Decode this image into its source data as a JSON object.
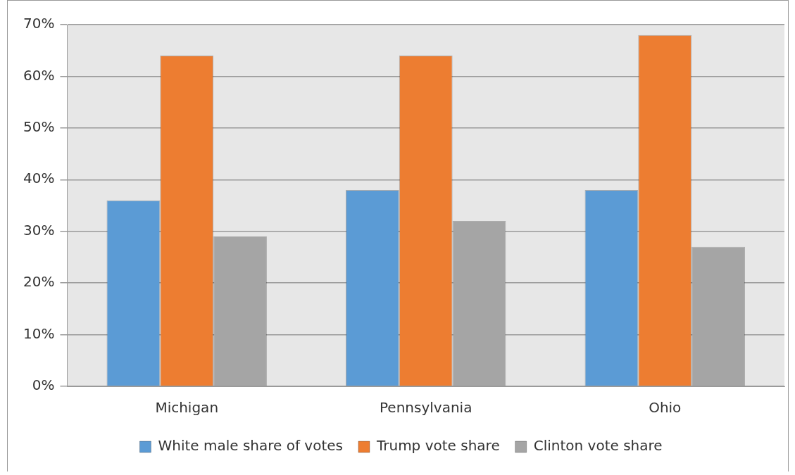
{
  "chart_data": {
    "type": "bar",
    "categories": [
      "Michigan",
      "Pennsylvania",
      "Ohio"
    ],
    "series": [
      {
        "name": "White male share of votes",
        "color": "#5b9bd5",
        "values": [
          36,
          38,
          38
        ]
      },
      {
        "name": "Trump vote share",
        "color": "#ed7d31",
        "values": [
          64,
          64,
          68
        ]
      },
      {
        "name": "Clinton vote share",
        "color": "#a5a5a5",
        "values": [
          29,
          32,
          27
        ]
      }
    ],
    "ylim": [
      0,
      70
    ],
    "yticks": [
      {
        "value": 0,
        "label": "0%"
      },
      {
        "value": 10,
        "label": "10%"
      },
      {
        "value": 20,
        "label": "20%"
      },
      {
        "value": 30,
        "label": "30%"
      },
      {
        "value": 40,
        "label": "40%"
      },
      {
        "value": 50,
        "label": "50%"
      },
      {
        "value": 60,
        "label": "60%"
      },
      {
        "value": 70,
        "label": "70%"
      }
    ],
    "grid": "y",
    "legend": "bottom"
  }
}
